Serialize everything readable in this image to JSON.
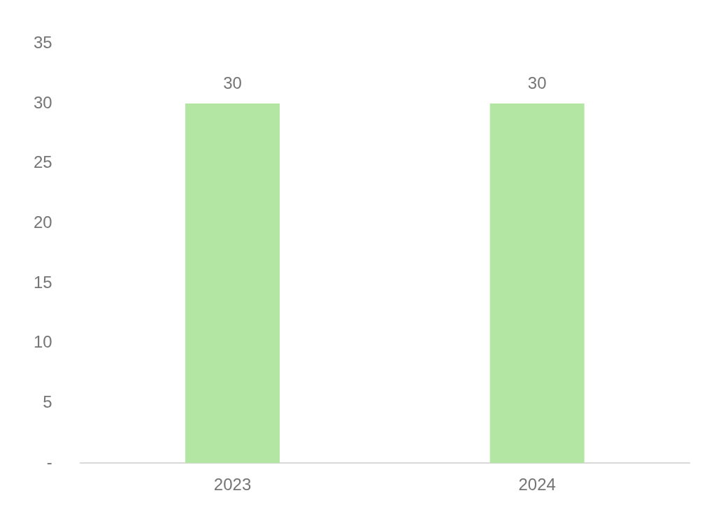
{
  "chart_data": {
    "type": "bar",
    "categories": [
      "2023",
      "2024"
    ],
    "values": [
      30,
      30
    ],
    "color": "#b3e6a3",
    "ylim": [
      0,
      35
    ],
    "yticks": [
      {
        "value": 0,
        "label": "-"
      },
      5,
      10,
      15,
      20,
      25,
      30,
      35
    ],
    "grid": false,
    "legend": false,
    "data_labels": true
  }
}
